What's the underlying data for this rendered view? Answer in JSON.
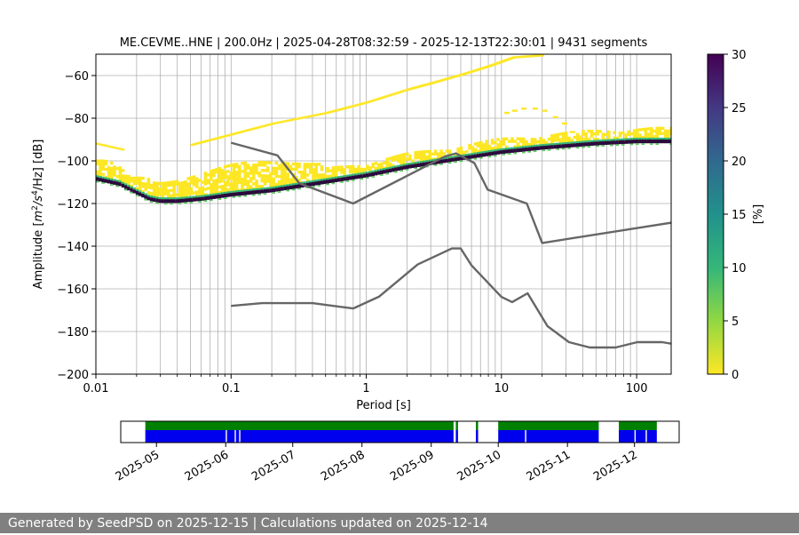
{
  "chart_data": {
    "type": "heatmap",
    "title": "ME.CEVME..HNE | 200.0Hz | 2025-04-28T08:32:59 - 2025-12-13T22:30:01 | 9431 segments",
    "xlabel": "Period [s]",
    "ylabel_parts": [
      "Amplitude [",
      "m",
      "2",
      "/",
      "s",
      "4",
      "/Hz] [dB]"
    ],
    "xscale": "log",
    "xlim": [
      0.01,
      180
    ],
    "ylim": [
      -200,
      -50
    ],
    "x_ticks": [
      {
        "value": 0.01,
        "label": "0.01"
      },
      {
        "value": 0.1,
        "label": "0.1"
      },
      {
        "value": 1,
        "label": "1"
      },
      {
        "value": 10,
        "label": "10"
      },
      {
        "value": 100,
        "label": "100"
      }
    ],
    "y_ticks": [
      {
        "value": -60,
        "label": "−60"
      },
      {
        "value": -80,
        "label": "−80"
      },
      {
        "value": -100,
        "label": "−100"
      },
      {
        "value": -120,
        "label": "−120"
      },
      {
        "value": -140,
        "label": "−140"
      },
      {
        "value": -160,
        "label": "−160"
      },
      {
        "value": -180,
        "label": "−180"
      },
      {
        "value": -200,
        "label": "−200"
      }
    ],
    "grid": true,
    "colorbar": {
      "label": "[%]",
      "range": [
        0,
        30
      ],
      "ticks": [
        {
          "value": 0,
          "label": "0"
        },
        {
          "value": 5,
          "label": "5"
        },
        {
          "value": 10,
          "label": "10"
        },
        {
          "value": 15,
          "label": "15"
        },
        {
          "value": 20,
          "label": "20"
        },
        {
          "value": 25,
          "label": "25"
        },
        {
          "value": 30,
          "label": "30"
        }
      ],
      "colors": [
        "#fde725",
        "#5ec962",
        "#21918c",
        "#3b528b",
        "#440154",
        "#2b0a3d"
      ]
    },
    "nhnm": [
      [
        0.1,
        -91.5
      ],
      [
        0.22,
        -97.4
      ],
      [
        0.32,
        -110.5
      ],
      [
        0.8,
        -120
      ],
      [
        3.8,
        -98
      ],
      [
        4.6,
        -96.5
      ],
      [
        6.3,
        -101
      ],
      [
        7.9,
        -113.5
      ],
      [
        15.4,
        -120
      ],
      [
        20,
        -138.5
      ],
      [
        180,
        -129
      ]
    ],
    "nlnm": [
      [
        0.1,
        -168
      ],
      [
        0.17,
        -166.7
      ],
      [
        0.4,
        -166.7
      ],
      [
        0.8,
        -169.2
      ],
      [
        1.24,
        -163.7
      ],
      [
        2.4,
        -148.6
      ],
      [
        4.3,
        -141.1
      ],
      [
        5,
        -141.1
      ],
      [
        6,
        -149
      ],
      [
        10,
        -163.8
      ],
      [
        12,
        -166.2
      ],
      [
        15.6,
        -162.1
      ],
      [
        21.9,
        -177.5
      ],
      [
        31.6,
        -185
      ],
      [
        45,
        -187.5
      ],
      [
        70,
        -187.5
      ],
      [
        101,
        -185
      ],
      [
        154,
        -185
      ],
      [
        180,
        -185.7
      ]
    ],
    "mode_curve": [
      [
        0.01,
        -108.5
      ],
      [
        0.015,
        -111
      ],
      [
        0.02,
        -115
      ],
      [
        0.025,
        -118
      ],
      [
        0.03,
        -119
      ],
      [
        0.04,
        -119
      ],
      [
        0.06,
        -118
      ],
      [
        0.1,
        -116
      ],
      [
        0.2,
        -114
      ],
      [
        0.5,
        -110
      ],
      [
        1,
        -107
      ],
      [
        2,
        -103
      ],
      [
        5,
        -99
      ],
      [
        10,
        -96
      ],
      [
        20,
        -94
      ],
      [
        50,
        -92
      ],
      [
        100,
        -91
      ],
      [
        180,
        -91
      ]
    ],
    "upper_branch": [
      [
        0.05,
        -92
      ],
      [
        0.1,
        -87
      ],
      [
        0.2,
        -82
      ],
      [
        0.5,
        -77
      ],
      [
        1,
        -72
      ],
      [
        2,
        -66
      ],
      [
        3,
        -63
      ],
      [
        5,
        -59
      ],
      [
        8,
        -55
      ],
      [
        12,
        -51
      ],
      [
        20,
        -50
      ]
    ],
    "availability": {
      "xticks": [
        "2025-05",
        "2025-06",
        "2025-07",
        "2025-08",
        "2025-09",
        "2025-10",
        "2025-11",
        "2025-12"
      ],
      "start": "2025-04-15",
      "end": "2025-12-21",
      "segments": [
        [
          "2025-04-26",
          "2025-09-11"
        ],
        [
          "2025-09-12",
          "2025-09-13"
        ],
        [
          "2025-09-21",
          "2025-09-22"
        ],
        [
          "2025-10-01",
          "2025-11-15"
        ],
        [
          "2025-11-24",
          "2025-12-11"
        ]
      ],
      "gaps_in_blue": [
        "2025-06-01",
        "2025-06-05",
        "2025-06-07",
        "2025-10-13",
        "2025-12-01",
        "2025-12-06"
      ]
    }
  },
  "footer": {
    "text": "Generated by SeedPSD on 2025-12-15 | Calculations updated on 2025-12-14"
  }
}
